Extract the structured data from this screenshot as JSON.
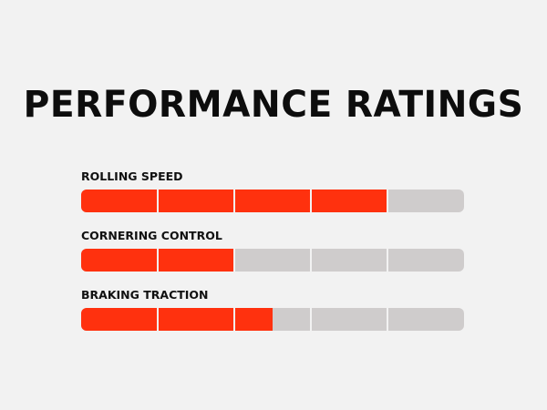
{
  "title": "PERFORMANCE RATINGS",
  "segments": 5,
  "colors": {
    "fill": "#ff310e",
    "track": "#cfcccc",
    "background": "#f2f2f2",
    "text": "#0d0d0d"
  },
  "ratings": [
    {
      "label": "ROLLING SPEED",
      "level": 4
    },
    {
      "label": "CORNERING CONTROL",
      "level": 2
    },
    {
      "label": "BRAKING TRACTION",
      "level": 2.5
    }
  ]
}
